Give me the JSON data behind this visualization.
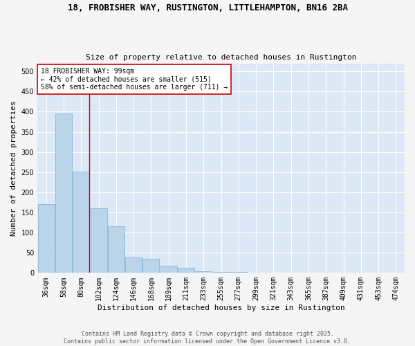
{
  "title_line1": "18, FROBISHER WAY, RUSTINGTON, LITTLEHAMPTON, BN16 2BA",
  "title_line2": "Size of property relative to detached houses in Rustington",
  "xlabel": "Distribution of detached houses by size in Rustington",
  "ylabel": "Number of detached properties",
  "bar_labels": [
    "36sqm",
    "58sqm",
    "80sqm",
    "102sqm",
    "124sqm",
    "146sqm",
    "168sqm",
    "189sqm",
    "211sqm",
    "233sqm",
    "255sqm",
    "277sqm",
    "299sqm",
    "321sqm",
    "343sqm",
    "365sqm",
    "387sqm",
    "409sqm",
    "431sqm",
    "453sqm",
    "474sqm"
  ],
  "bar_values": [
    170,
    395,
    252,
    160,
    115,
    38,
    35,
    18,
    12,
    4,
    2,
    2,
    1,
    0,
    0,
    0,
    0,
    0,
    0,
    0,
    0
  ],
  "bar_color": "#bad4ea",
  "bar_edgecolor": "#7aafd4",
  "vline_x_index": 2,
  "vline_color": "#cc0000",
  "annotation_text": "18 FROBISHER WAY: 99sqm\n← 42% of detached houses are smaller (515)\n58% of semi-detached houses are larger (711) →",
  "annotation_box_facecolor": "#ffffff",
  "annotation_box_edgecolor": "#cc0000",
  "ylim": [
    0,
    520
  ],
  "yticks": [
    0,
    50,
    100,
    150,
    200,
    250,
    300,
    350,
    400,
    450,
    500
  ],
  "fig_background": "#f5f5f5",
  "plot_background": "#dce8f5",
  "grid_color": "#ffffff",
  "footer_text": "Contains HM Land Registry data © Crown copyright and database right 2025.\nContains public sector information licensed under the Open Government Licence v3.0.",
  "title_fontsize": 9,
  "subtitle_fontsize": 8,
  "axis_label_fontsize": 8,
  "tick_fontsize": 7,
  "annotation_fontsize": 7,
  "footer_fontsize": 6
}
